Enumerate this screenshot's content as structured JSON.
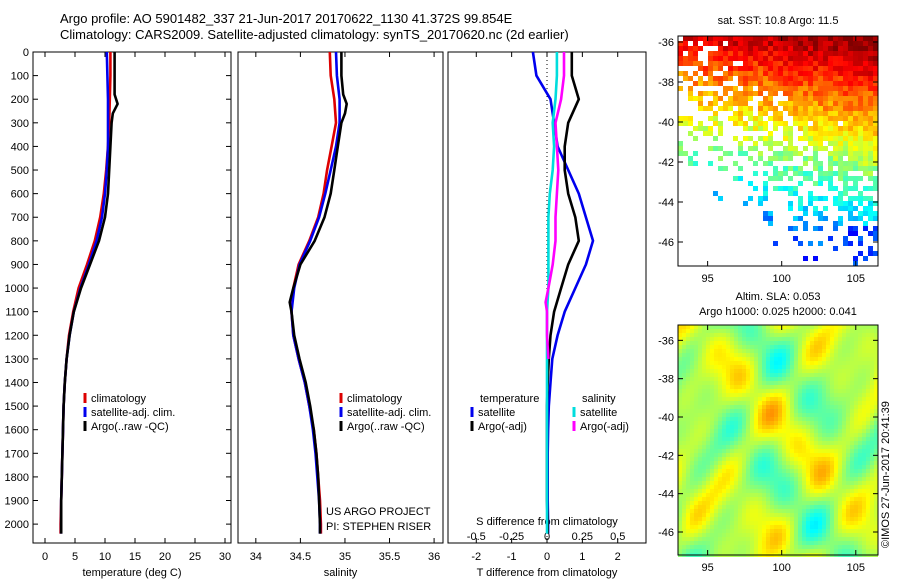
{
  "header": {
    "line1": "Argo profile: AO 5901482_337 21-Jun-2017 20170622_1130 41.372S 99.854E",
    "line2": "Climatology: CARS2009. Satellite-adjusted climatology: synTS_20170620.nc (2d earlier)"
  },
  "credit": {
    "project": "US ARGO PROJECT",
    "pi": "PI: STEPHEN RISER",
    "imos": "©IMOS 27-Jun-2017 20:41:39"
  },
  "colors": {
    "climatology": "#dd0000",
    "satellite": "#0000ee",
    "argo": "#000000",
    "sal_satellite": "#00dddd",
    "sal_argo": "#ff00ff"
  },
  "chart_data": [
    {
      "id": "temperature",
      "type": "line",
      "xlabel": "temperature (deg C)",
      "ylabel": "",
      "xlim": [
        -2,
        31
      ],
      "ylim": [
        2080,
        0
      ],
      "xticks": [
        0,
        5,
        10,
        15,
        20,
        25,
        30
      ],
      "yticks": [
        0,
        100,
        200,
        300,
        400,
        500,
        600,
        700,
        800,
        900,
        1000,
        1100,
        1200,
        1300,
        1400,
        1500,
        1600,
        1700,
        1800,
        1900,
        2000
      ],
      "legend": [
        "climatology",
        "satellite-adj. clim.",
        "Argo(..raw -QC)"
      ],
      "series": [
        {
          "name": "climatology",
          "color": "#dd0000",
          "points": [
            [
              10.9,
              0
            ],
            [
              10.9,
              100
            ],
            [
              10.8,
              200
            ],
            [
              10.7,
              300
            ],
            [
              10.5,
              400
            ],
            [
              10.2,
              500
            ],
            [
              9.8,
              600
            ],
            [
              9.2,
              700
            ],
            [
              8.3,
              800
            ],
            [
              7.0,
              900
            ],
            [
              5.6,
              1000
            ],
            [
              4.7,
              1100
            ],
            [
              4.0,
              1200
            ],
            [
              3.6,
              1300
            ],
            [
              3.3,
              1400
            ],
            [
              3.1,
              1500
            ],
            [
              3.0,
              1600
            ],
            [
              2.9,
              1700
            ],
            [
              2.8,
              1800
            ],
            [
              2.7,
              1900
            ],
            [
              2.6,
              2000
            ],
            [
              2.6,
              2040
            ]
          ]
        },
        {
          "name": "satellite-adj. clim.",
          "color": "#0000ee",
          "points": [
            [
              10.3,
              0
            ],
            [
              10.4,
              100
            ],
            [
              10.5,
              200
            ],
            [
              10.5,
              300
            ],
            [
              10.5,
              400
            ],
            [
              10.3,
              500
            ],
            [
              10.0,
              600
            ],
            [
              9.5,
              700
            ],
            [
              8.6,
              800
            ],
            [
              7.3,
              900
            ],
            [
              5.9,
              1000
            ],
            [
              4.8,
              1100
            ],
            [
              4.1,
              1200
            ],
            [
              3.6,
              1300
            ],
            [
              3.3,
              1400
            ],
            [
              3.1,
              1500
            ],
            [
              3.0,
              1600
            ],
            [
              2.9,
              1700
            ],
            [
              2.8,
              1800
            ],
            [
              2.7,
              1900
            ],
            [
              2.7,
              2000
            ],
            [
              2.7,
              2040
            ]
          ]
        },
        {
          "name": "Argo(..raw -QC)",
          "color": "#000000",
          "points": [
            [
              11.6,
              0
            ],
            [
              11.6,
              100
            ],
            [
              11.6,
              180
            ],
            [
              12.1,
              220
            ],
            [
              11.3,
              260
            ],
            [
              11.1,
              300
            ],
            [
              10.9,
              400
            ],
            [
              10.7,
              500
            ],
            [
              10.5,
              600
            ],
            [
              10.0,
              700
            ],
            [
              9.0,
              800
            ],
            [
              7.5,
              900
            ],
            [
              6.0,
              1000
            ],
            [
              4.8,
              1100
            ],
            [
              4.1,
              1200
            ],
            [
              3.6,
              1300
            ],
            [
              3.3,
              1400
            ],
            [
              3.1,
              1500
            ],
            [
              3.0,
              1600
            ],
            [
              2.9,
              1700
            ],
            [
              2.8,
              1800
            ],
            [
              2.7,
              1900
            ],
            [
              2.7,
              2000
            ],
            [
              2.7,
              2040
            ]
          ]
        }
      ]
    },
    {
      "id": "salinity",
      "type": "line",
      "xlabel": "salinity",
      "xlim": [
        33.8,
        36.1
      ],
      "ylim": [
        2080,
        0
      ],
      "xticks": [
        34,
        34.5,
        35,
        35.5,
        36
      ],
      "legend": [
        "climatology",
        "satellite-adj. clim.",
        "Argo(..raw -QC)"
      ],
      "series": [
        {
          "name": "climatology",
          "color": "#dd0000",
          "points": [
            [
              34.83,
              0
            ],
            [
              34.84,
              100
            ],
            [
              34.88,
              200
            ],
            [
              34.9,
              300
            ],
            [
              34.85,
              400
            ],
            [
              34.8,
              500
            ],
            [
              34.76,
              600
            ],
            [
              34.7,
              700
            ],
            [
              34.6,
              800
            ],
            [
              34.48,
              900
            ],
            [
              34.42,
              1000
            ],
            [
              34.4,
              1100
            ],
            [
              34.42,
              1200
            ],
            [
              34.48,
              1300
            ],
            [
              34.55,
              1400
            ],
            [
              34.6,
              1500
            ],
            [
              34.65,
              1600
            ],
            [
              34.68,
              1700
            ],
            [
              34.7,
              1800
            ],
            [
              34.72,
              1900
            ],
            [
              34.73,
              2000
            ],
            [
              34.73,
              2040
            ]
          ]
        },
        {
          "name": "satellite-adj. clim.",
          "color": "#0000ee",
          "points": [
            [
              34.9,
              0
            ],
            [
              34.91,
              100
            ],
            [
              34.94,
              200
            ],
            [
              34.94,
              300
            ],
            [
              34.9,
              400
            ],
            [
              34.84,
              500
            ],
            [
              34.78,
              600
            ],
            [
              34.71,
              700
            ],
            [
              34.61,
              800
            ],
            [
              34.49,
              900
            ],
            [
              34.43,
              1000
            ],
            [
              34.4,
              1100
            ],
            [
              34.42,
              1200
            ],
            [
              34.48,
              1300
            ],
            [
              34.55,
              1400
            ],
            [
              34.6,
              1500
            ],
            [
              34.64,
              1600
            ],
            [
              34.67,
              1700
            ],
            [
              34.69,
              1800
            ],
            [
              34.71,
              1900
            ],
            [
              34.72,
              2000
            ],
            [
              34.72,
              2040
            ]
          ]
        },
        {
          "name": "Argo(..raw -QC)",
          "color": "#000000",
          "points": [
            [
              34.96,
              0
            ],
            [
              34.96,
              100
            ],
            [
              34.98,
              180
            ],
            [
              35.02,
              220
            ],
            [
              35.0,
              260
            ],
            [
              34.96,
              300
            ],
            [
              34.92,
              400
            ],
            [
              34.88,
              500
            ],
            [
              34.84,
              600
            ],
            [
              34.77,
              700
            ],
            [
              34.66,
              800
            ],
            [
              34.5,
              900
            ],
            [
              34.42,
              1000
            ],
            [
              34.38,
              1060
            ],
            [
              34.4,
              1100
            ],
            [
              34.43,
              1200
            ],
            [
              34.49,
              1300
            ],
            [
              34.56,
              1400
            ],
            [
              34.61,
              1500
            ],
            [
              34.65,
              1600
            ],
            [
              34.68,
              1700
            ],
            [
              34.7,
              1800
            ],
            [
              34.71,
              1900
            ],
            [
              34.72,
              2000
            ],
            [
              34.72,
              2040
            ]
          ]
        }
      ]
    },
    {
      "id": "difference",
      "type": "line",
      "xlabel": "T difference from climatology",
      "top_label": "S difference from climatology",
      "xlim": [
        -2.8,
        2.8
      ],
      "ylim": [
        2080,
        0
      ],
      "xticks_T": [
        -2,
        -1,
        0,
        1,
        2
      ],
      "xticks_S": [
        -0.5,
        -0.25,
        0,
        0.25,
        0.5
      ],
      "legend_T_title": "temperature",
      "legend_S_title": "salinity",
      "legend_T": [
        "satellite",
        "Argo(-adj)"
      ],
      "legend_S": [
        "satellite",
        "Argo(-adj)"
      ],
      "series": [
        {
          "name": "T satellite",
          "color": "#0000ee",
          "points": [
            [
              -0.4,
              0
            ],
            [
              -0.3,
              100
            ],
            [
              0.1,
              200
            ],
            [
              0.2,
              300
            ],
            [
              0.3,
              400
            ],
            [
              0.6,
              500
            ],
            [
              0.9,
              600
            ],
            [
              1.1,
              700
            ],
            [
              1.3,
              800
            ],
            [
              1.1,
              900
            ],
            [
              0.8,
              1000
            ],
            [
              0.5,
              1100
            ],
            [
              0.3,
              1200
            ],
            [
              0.15,
              1300
            ],
            [
              0.1,
              1400
            ],
            [
              0.05,
              1500
            ],
            [
              0.03,
              1600
            ],
            [
              0.02,
              1700
            ],
            [
              0.02,
              1800
            ],
            [
              0.02,
              1900
            ],
            [
              0.03,
              2000
            ],
            [
              0.03,
              2040
            ]
          ]
        },
        {
          "name": "T Argo(-adj)",
          "color": "#000000",
          "points": [
            [
              0.7,
              0
            ],
            [
              0.7,
              100
            ],
            [
              0.9,
              200
            ],
            [
              0.6,
              300
            ],
            [
              0.5,
              400
            ],
            [
              0.5,
              500
            ],
            [
              0.6,
              600
            ],
            [
              0.8,
              700
            ],
            [
              0.9,
              800
            ],
            [
              0.6,
              900
            ],
            [
              0.4,
              1000
            ],
            [
              0.2,
              1100
            ],
            [
              0.1,
              1200
            ],
            [
              0.05,
              1300
            ],
            [
              0.02,
              1400
            ],
            [
              0.0,
              1500
            ],
            [
              0.0,
              1600
            ],
            [
              0.0,
              1700
            ],
            [
              0.0,
              1800
            ],
            [
              0.0,
              1900
            ],
            [
              0.02,
              2000
            ],
            [
              0.02,
              2040
            ]
          ]
        },
        {
          "name": "S satellite",
          "color": "#00dddd",
          "points": [
            [
              0.07,
              0
            ],
            [
              0.07,
              100
            ],
            [
              0.06,
              200
            ],
            [
              0.04,
              300
            ],
            [
              0.05,
              400
            ],
            [
              0.04,
              500
            ],
            [
              0.02,
              600
            ],
            [
              0.01,
              700
            ],
            [
              0.01,
              800
            ],
            [
              0.01,
              900
            ],
            [
              0.01,
              1000
            ],
            [
              0.0,
              1100
            ],
            [
              0.0,
              1200
            ],
            [
              0.0,
              1300
            ],
            [
              0.0,
              1400
            ],
            [
              0.0,
              1500
            ],
            [
              0.0,
              1600
            ],
            [
              0.0,
              1700
            ],
            [
              0.0,
              1800
            ],
            [
              0.0,
              1900
            ],
            [
              0.0,
              2000
            ],
            [
              0.0,
              2040
            ]
          ]
        },
        {
          "name": "S Argo(-adj)",
          "color": "#ff00ff",
          "points": [
            [
              0.12,
              0
            ],
            [
              0.12,
              100
            ],
            [
              0.1,
              200
            ],
            [
              0.06,
              300
            ],
            [
              0.07,
              400
            ],
            [
              0.08,
              500
            ],
            [
              0.07,
              600
            ],
            [
              0.06,
              700
            ],
            [
              0.06,
              800
            ],
            [
              0.04,
              900
            ],
            [
              0.01,
              1000
            ],
            [
              -0.01,
              1060
            ],
            [
              0.0,
              1100
            ],
            [
              0.0,
              1200
            ],
            [
              0.01,
              1300
            ]
          ]
        }
      ]
    },
    {
      "id": "sst_map",
      "type": "heatmap",
      "title": "sat. SST: 10.8 Argo: 11.5",
      "xlim": [
        93,
        106.5
      ],
      "ylim": [
        -47.2,
        -35.7
      ],
      "xticks": [
        95,
        100,
        105
      ],
      "yticks": [
        -36,
        -38,
        -40,
        -42,
        -44,
        -46
      ]
    },
    {
      "id": "sla_map",
      "type": "heatmap",
      "title_line1": "Altim. SLA: 0.053",
      "title_line2": "Argo h1000: 0.025 h2000: 0.041",
      "xlim": [
        93,
        106.5
      ],
      "ylim": [
        -47.2,
        -35.2
      ],
      "xticks": [
        95,
        100,
        105
      ],
      "yticks": [
        -36,
        -38,
        -40,
        -42,
        -44,
        -46
      ]
    }
  ]
}
